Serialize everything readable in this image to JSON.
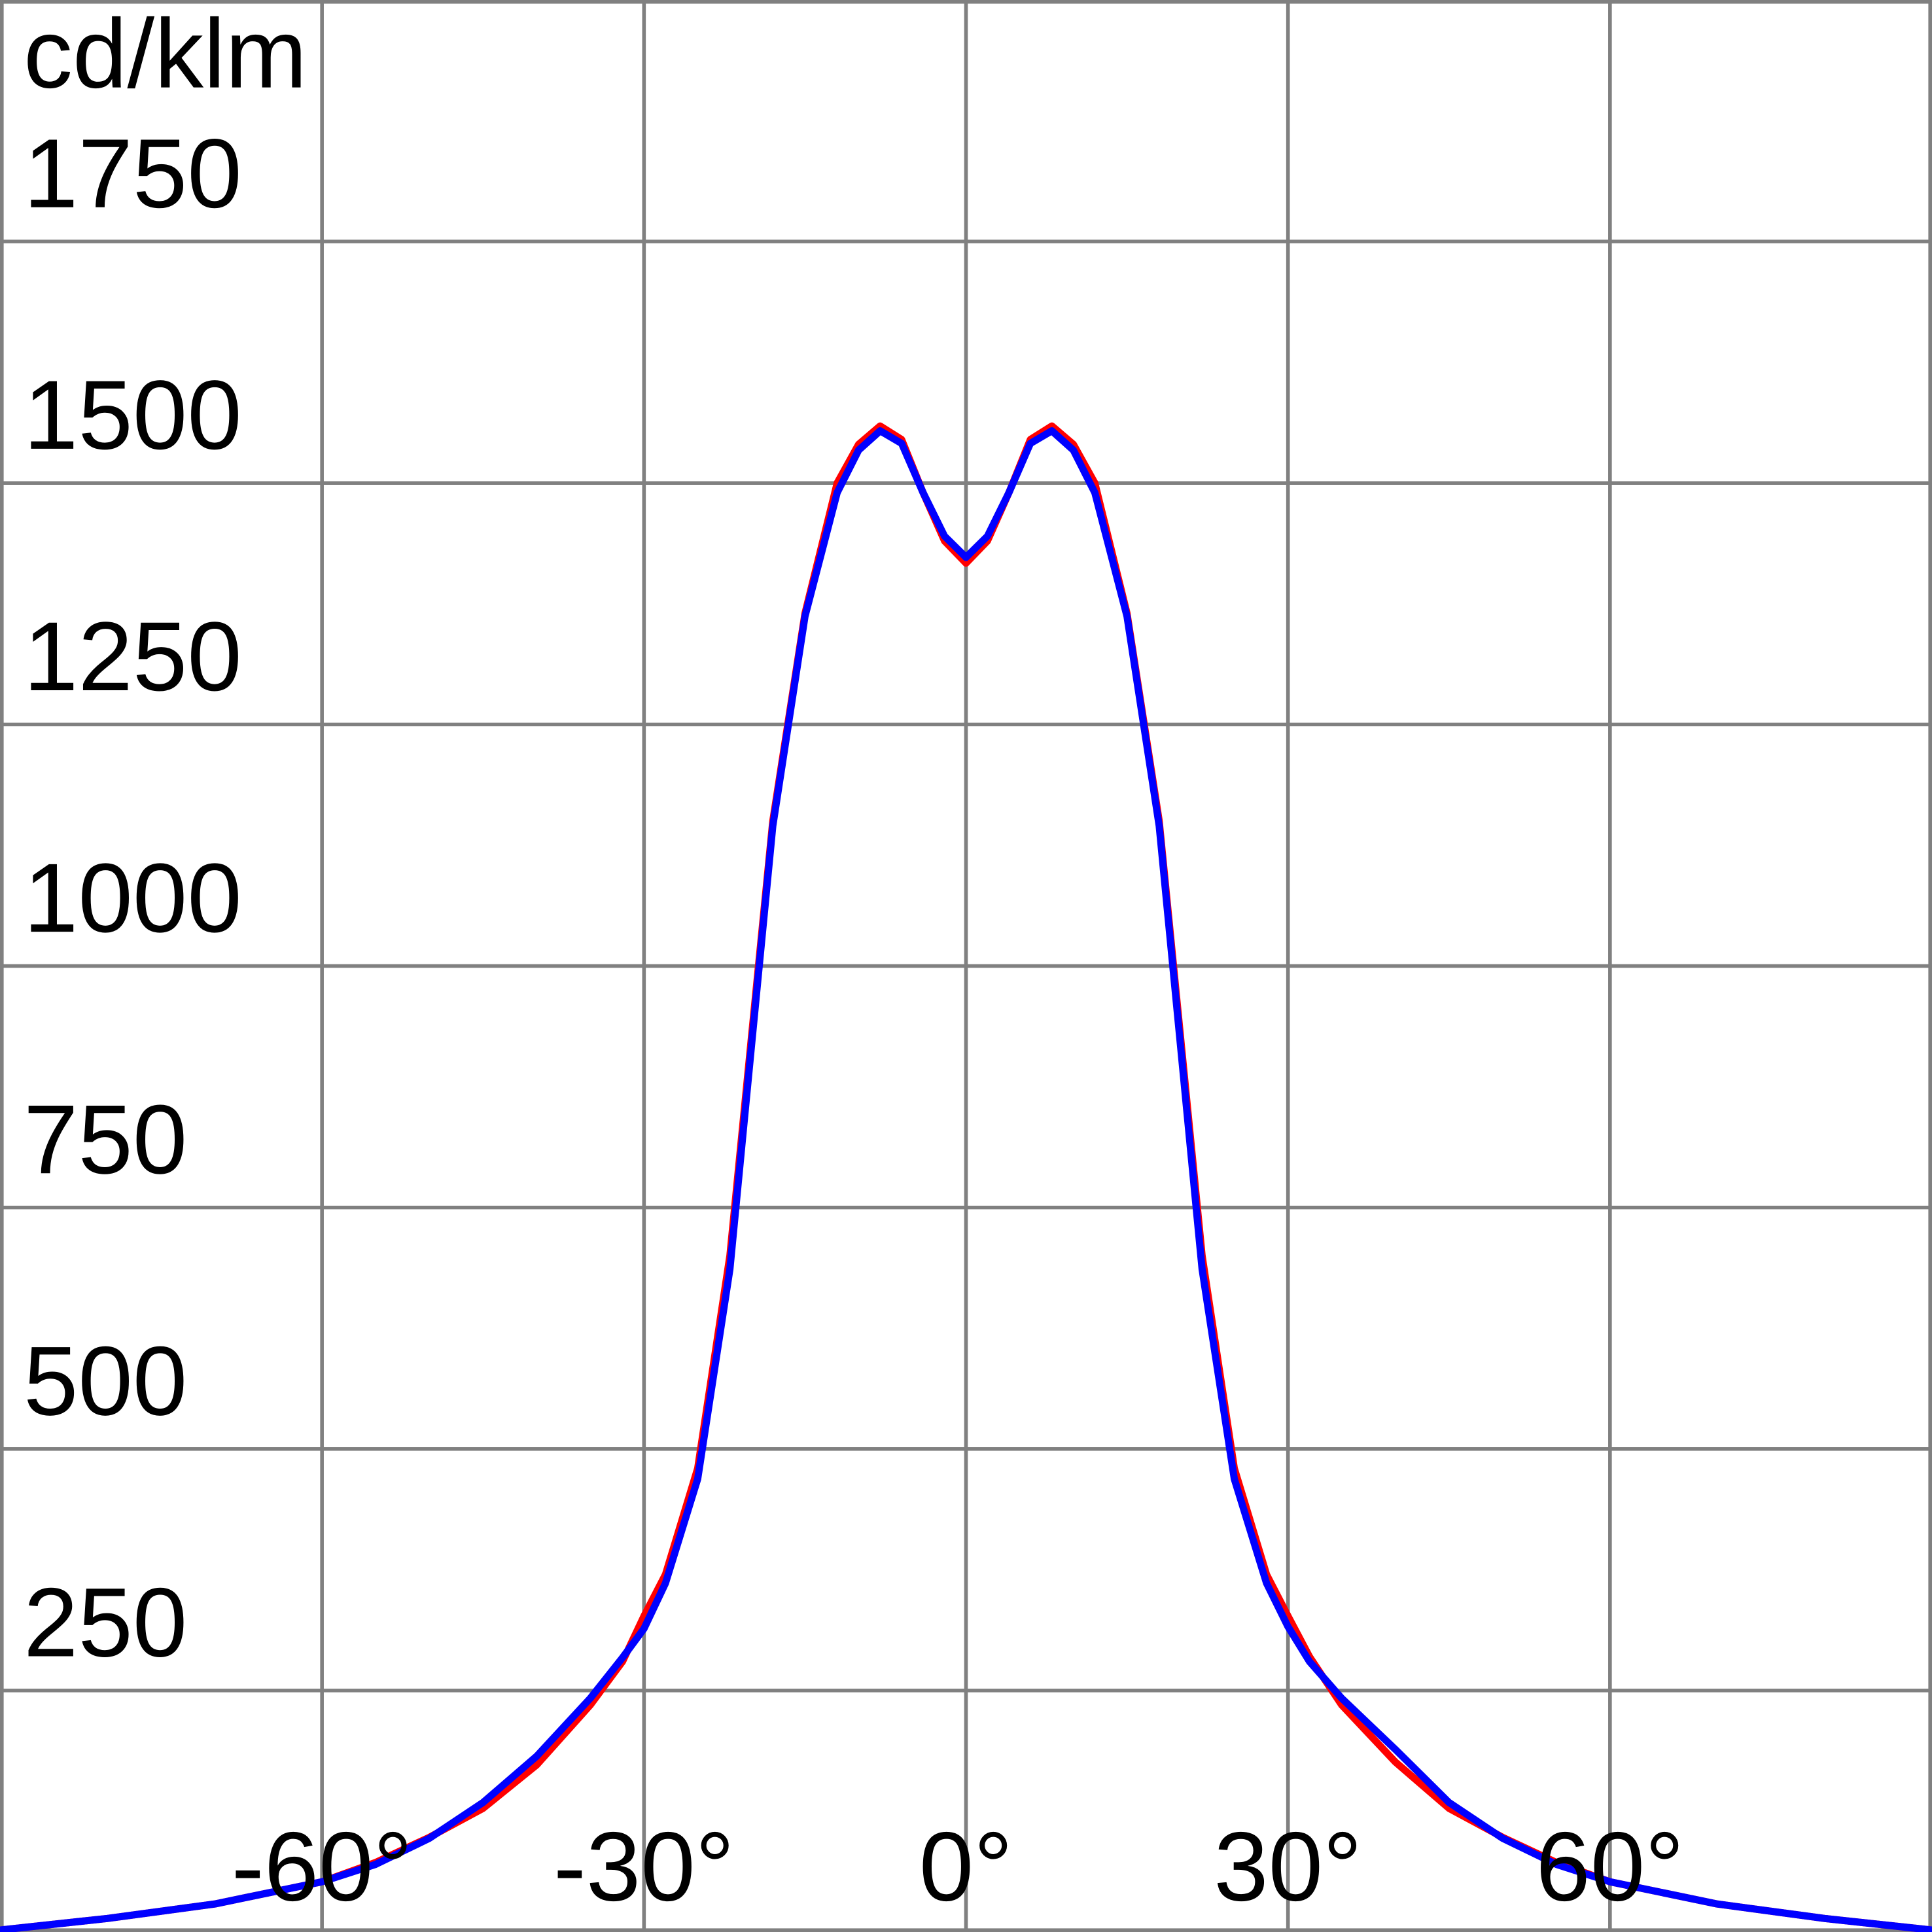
{
  "chart_data": {
    "type": "line",
    "y_label": "cd/klm",
    "x": [
      -90,
      -80,
      -70,
      -60,
      -55,
      -50,
      -45,
      -40,
      -35,
      -32,
      -30,
      -28,
      -25,
      -22,
      -20,
      -18,
      -15,
      -12,
      -10,
      -8,
      -6,
      -4,
      -2,
      0,
      2,
      4,
      6,
      8,
      10,
      12,
      15,
      18,
      20,
      22,
      25,
      28,
      30,
      32,
      35,
      40,
      45,
      50,
      55,
      60,
      70,
      80,
      90
    ],
    "series": [
      {
        "color": "#ff0000",
        "values": [
          2,
          14,
          29,
          52,
          72,
          98,
          128,
          173,
          235,
          280,
          327,
          370,
          480,
          700,
          925,
          1150,
          1365,
          1500,
          1540,
          1559,
          1545,
          1490,
          1440,
          1417,
          1440,
          1490,
          1545,
          1559,
          1540,
          1500,
          1365,
          1150,
          925,
          700,
          480,
          370,
          327,
          285,
          235,
          176,
          128,
          98,
          72,
          52,
          29,
          14,
          2
        ]
      },
      {
        "color": "#0000ff",
        "values": [
          2,
          14,
          29,
          52,
          70,
          97,
          134,
          182,
          242,
          284,
          314,
          361,
          469,
          686,
          916,
          1145,
          1362,
          1490,
          1534,
          1554,
          1541,
          1490,
          1445,
          1423,
          1445,
          1490,
          1541,
          1554,
          1534,
          1490,
          1362,
          1145,
          916,
          686,
          469,
          361,
          316,
          280,
          242,
          189,
          134,
          97,
          70,
          52,
          29,
          14,
          2
        ]
      }
    ],
    "xlim": [
      -90,
      90
    ],
    "ylim": [
      0,
      2000
    ],
    "xticks": [
      {
        "value": -60,
        "label": "-60°"
      },
      {
        "value": -30,
        "label": "-30°"
      },
      {
        "value": 0,
        "label": "0°"
      },
      {
        "value": 30,
        "label": "30°"
      },
      {
        "value": 60,
        "label": "60°"
      }
    ],
    "yticks": [
      250,
      500,
      750,
      1000,
      1250,
      1500,
      1750
    ],
    "grid": true
  }
}
